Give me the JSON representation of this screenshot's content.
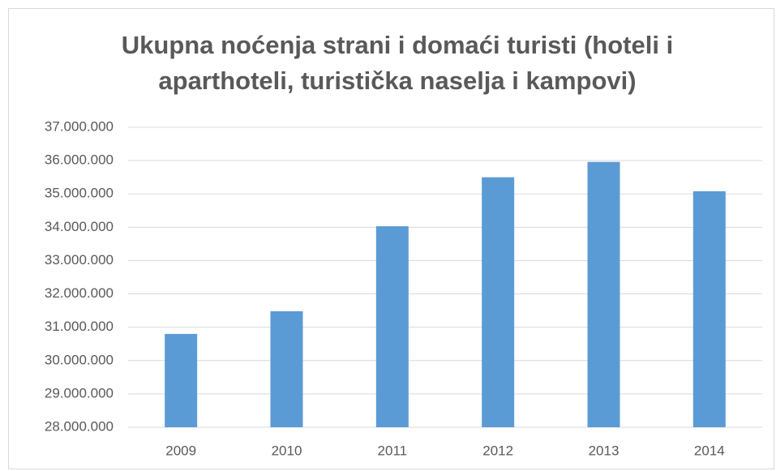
{
  "chart_data": {
    "type": "bar",
    "title": "Ukupna noćenja strani i domaći turisti (hoteli i aparthoteli, turistička naselja i kampovi)",
    "categories": [
      "2009",
      "2010",
      "2011",
      "2012",
      "2013",
      "2014"
    ],
    "values": [
      30800000,
      31480000,
      34030000,
      35500000,
      35960000,
      35080000
    ],
    "color": "#5b9bd5",
    "ylim": [
      28000000,
      37000000
    ],
    "yticks": [
      {
        "value": 28000000,
        "label": "28.000.000"
      },
      {
        "value": 29000000,
        "label": "29.000.000"
      },
      {
        "value": 30000000,
        "label": "30.000.000"
      },
      {
        "value": 31000000,
        "label": "31.000.000"
      },
      {
        "value": 32000000,
        "label": "32.000.000"
      },
      {
        "value": 33000000,
        "label": "33.000.000"
      },
      {
        "value": 34000000,
        "label": "34.000.000"
      },
      {
        "value": 35000000,
        "label": "35.000.000"
      },
      {
        "value": 36000000,
        "label": "36.000.000"
      },
      {
        "value": 37000000,
        "label": "37.000.000"
      }
    ],
    "grid": true
  }
}
